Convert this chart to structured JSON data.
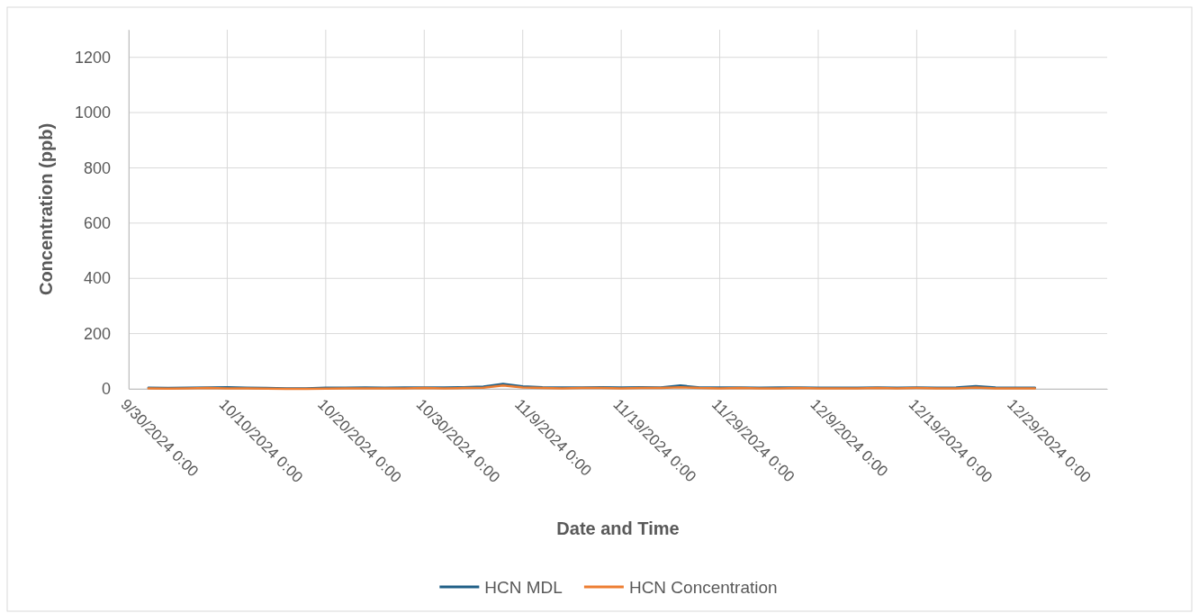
{
  "chart_data": {
    "type": "line",
    "xlabel": "Date and Time",
    "ylabel": "Concentration (ppb)",
    "x": [
      "2024-10-02",
      "2024-10-04",
      "2024-10-06",
      "2024-10-08",
      "2024-10-10",
      "2024-10-12",
      "2024-10-14",
      "2024-10-16",
      "2024-10-18",
      "2024-10-20",
      "2024-10-22",
      "2024-10-24",
      "2024-10-26",
      "2024-10-28",
      "2024-10-30",
      "2024-11-01",
      "2024-11-03",
      "2024-11-05",
      "2024-11-07",
      "2024-11-09",
      "2024-11-11",
      "2024-11-13",
      "2024-11-15",
      "2024-11-17",
      "2024-11-19",
      "2024-11-21",
      "2024-11-23",
      "2024-11-25",
      "2024-11-27",
      "2024-11-29",
      "2024-12-01",
      "2024-12-03",
      "2024-12-05",
      "2024-12-07",
      "2024-12-09",
      "2024-12-11",
      "2024-12-13",
      "2024-12-15",
      "2024-12-17",
      "2024-12-19",
      "2024-12-21",
      "2024-12-23",
      "2024-12-25",
      "2024-12-27",
      "2024-12-29",
      "2024-12-31"
    ],
    "series": [
      {
        "name": "HCN MDL",
        "color": "#1f5f86",
        "values": [
          4,
          3,
          4,
          5,
          6,
          4,
          3,
          2,
          2,
          4,
          4,
          5,
          4,
          5,
          5,
          5,
          6,
          8,
          18,
          9,
          6,
          5,
          5,
          6,
          5,
          6,
          5,
          12,
          5,
          5,
          5,
          4,
          5,
          5,
          4,
          4,
          4,
          5,
          4,
          5,
          4,
          5,
          10,
          5,
          4,
          4
        ]
      },
      {
        "name": "HCN Concentration",
        "color": "#ed7d31",
        "values": [
          2,
          1,
          2,
          3,
          2,
          2,
          1,
          0,
          0,
          1,
          2,
          2,
          2,
          2,
          3,
          2,
          3,
          4,
          12,
          5,
          3,
          2,
          3,
          3,
          2,
          3,
          3,
          6,
          3,
          2,
          3,
          2,
          2,
          3,
          2,
          2,
          2,
          3,
          2,
          3,
          2,
          2,
          5,
          2,
          2,
          2
        ]
      }
    ],
    "xlim": [
      "2024-09-30",
      "2025-01-07T08:00"
    ],
    "xticks": [
      {
        "value": "2024-09-30T00:00",
        "label": "9/30/2024 0:00"
      },
      {
        "value": "2024-10-10T00:00",
        "label": "10/10/2024 0:00"
      },
      {
        "value": "2024-10-20T00:00",
        "label": "10/20/2024 0:00"
      },
      {
        "value": "2024-10-30T00:00",
        "label": "10/30/2024 0:00"
      },
      {
        "value": "2024-11-09T00:00",
        "label": "11/9/2024 0:00"
      },
      {
        "value": "2024-11-19T00:00",
        "label": "11/19/2024 0:00"
      },
      {
        "value": "2024-11-29T00:00",
        "label": "11/29/2024 0:00"
      },
      {
        "value": "2024-12-09T00:00",
        "label": "12/9/2024 0:00"
      },
      {
        "value": "2024-12-19T00:00",
        "label": "12/19/2024 0:00"
      },
      {
        "value": "2024-12-29T00:00",
        "label": "12/29/2024 0:00"
      }
    ],
    "ylim": [
      0,
      1300
    ],
    "yticks": [
      0,
      200,
      400,
      600,
      800,
      1000,
      1200
    ],
    "grid": true,
    "legend": "bottom",
    "marker": "none",
    "line_style": "solid"
  }
}
